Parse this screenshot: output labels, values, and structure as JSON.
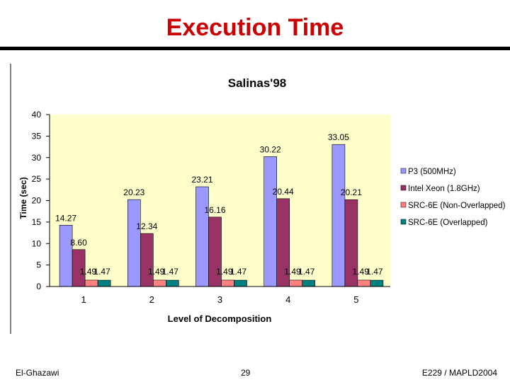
{
  "slide": {
    "title": "Execution Time",
    "footer_left": "El-Ghazawi",
    "footer_center": "29",
    "footer_right": "E229 / MAPLD2004"
  },
  "colors": {
    "title": "#cc0000",
    "plot_bg": "#ffffcc"
  },
  "chart_data": {
    "type": "bar",
    "title": "Salinas'98",
    "xlabel": "Level of Decomposition",
    "ylabel": "Time (sec)",
    "ylim": [
      0,
      40
    ],
    "yticks": [
      "0",
      "5",
      "10",
      "15",
      "20",
      "25",
      "30",
      "35",
      "40"
    ],
    "categories": [
      "1",
      "2",
      "3",
      "4",
      "5"
    ],
    "legend_position": "right",
    "grid": false,
    "series": [
      {
        "name": "P3 (500MHz)",
        "color": "#9999ff",
        "values": [
          14.27,
          20.23,
          23.21,
          30.22,
          33.05
        ],
        "labels": [
          "14.27",
          "20.23",
          "23.21",
          "30.22",
          "33.05"
        ]
      },
      {
        "name": "Intel Xeon (1.8GHz)",
        "color": "#993366",
        "values": [
          8.6,
          12.34,
          16.16,
          20.44,
          20.21
        ],
        "labels": [
          "8.60",
          "12.34",
          "16.16",
          "20.44",
          "20.21"
        ]
      },
      {
        "name": "SRC-6E (Non-Overlapped)",
        "color": "#ff8080",
        "values": [
          1.49,
          1.49,
          1.49,
          1.49,
          1.49
        ],
        "labels": [
          "1.49",
          "1.49",
          "1.49",
          "1.49",
          "1.49"
        ]
      },
      {
        "name": "SRC-6E (Overlapped)",
        "color": "#008080",
        "values": [
          1.47,
          1.47,
          1.47,
          1.47,
          1.47
        ],
        "labels": [
          "1.47",
          "1.47",
          "1.47",
          "1.47",
          "1.47"
        ]
      }
    ]
  }
}
